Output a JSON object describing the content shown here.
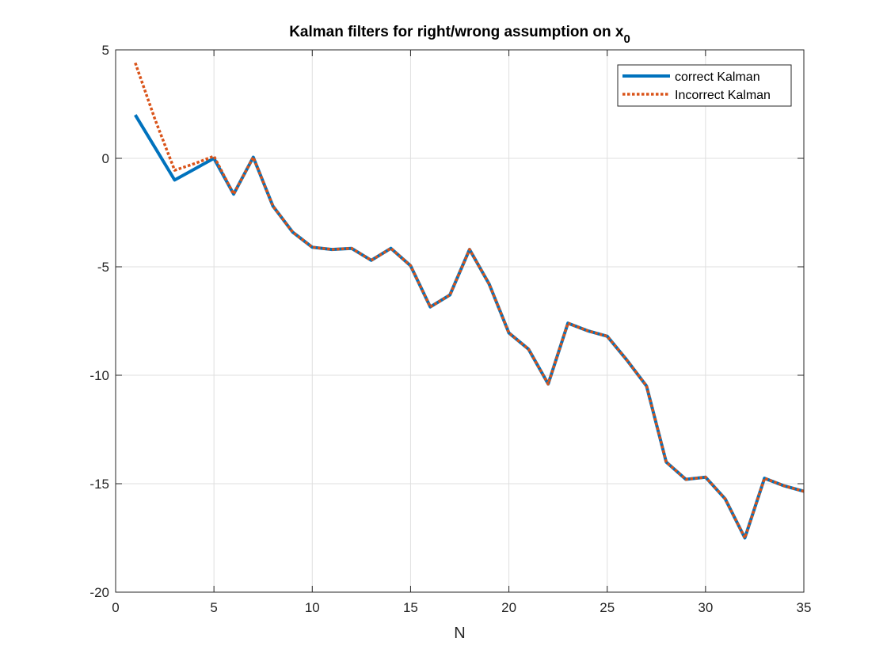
{
  "chart_data": {
    "type": "line",
    "title": "Kalman filters for right/wrong assumption on x",
    "title_subscript": "0",
    "xlabel": "N",
    "ylabel": "",
    "xlim": [
      0,
      35
    ],
    "ylim": [
      -20,
      5
    ],
    "xticks": [
      0,
      5,
      10,
      15,
      20,
      25,
      30,
      35
    ],
    "yticks": [
      -20,
      -15,
      -10,
      -5,
      0,
      5
    ],
    "grid": true,
    "legend_position": "top-right",
    "x": [
      1,
      2,
      3,
      4,
      5,
      6,
      7,
      8,
      9,
      10,
      11,
      12,
      13,
      14,
      15,
      16,
      17,
      18,
      19,
      20,
      21,
      22,
      23,
      24,
      25,
      26,
      27,
      28,
      29,
      30,
      31,
      32,
      33,
      34,
      35
    ],
    "series": [
      {
        "name": "correct Kalman",
        "color": "#0072BD",
        "style": "solid",
        "values": [
          2.0,
          0.5,
          -1.0,
          -0.5,
          0.0,
          -1.65,
          0.05,
          -2.2,
          -3.4,
          -4.1,
          -4.2,
          -4.15,
          -4.7,
          -4.15,
          -4.95,
          -6.85,
          -6.3,
          -4.2,
          -5.8,
          -8.05,
          -8.8,
          -10.4,
          -7.6,
          -7.95,
          -8.2,
          -9.3,
          -10.5,
          -14.0,
          -14.8,
          -14.7,
          -15.7,
          -17.5,
          -14.75,
          -15.1,
          -15.35
        ]
      },
      {
        "name": "Incorrect Kalman",
        "color": "#D95319",
        "style": "dotted",
        "values": [
          4.4,
          1.8,
          -0.55,
          -0.25,
          0.1,
          -1.65,
          0.05,
          -2.2,
          -3.4,
          -4.1,
          -4.2,
          -4.15,
          -4.7,
          -4.15,
          -4.95,
          -6.85,
          -6.3,
          -4.2,
          -5.8,
          -8.05,
          -8.8,
          -10.4,
          -7.6,
          -7.95,
          -8.2,
          -9.3,
          -10.5,
          -14.0,
          -14.8,
          -14.7,
          -15.7,
          -17.5,
          -14.75,
          -15.1,
          -15.35
        ]
      }
    ]
  }
}
